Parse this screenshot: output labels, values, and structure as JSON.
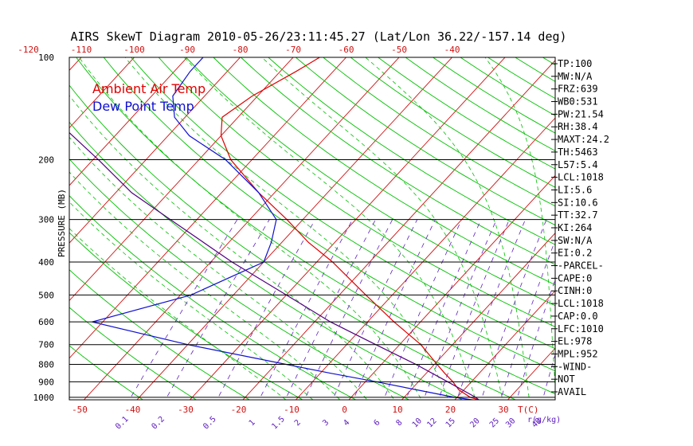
{
  "title": "AIRS SkewT Diagram 2010-05-26/23:11:45.27 (Lat/Lon 36.22/-157.14 deg)",
  "legend": {
    "ambient_label": "Ambient Air Temp",
    "dewpoint_label": "Dew Point Temp"
  },
  "colors": {
    "ambient": "#e00000",
    "dewpoint": "#1010d0",
    "parcel": "#500080",
    "dry_adiabat": "#00c000",
    "isotherm": "#d01010",
    "mixing_ratio": "#6020c0",
    "text": "#000000"
  },
  "stats": [
    "TP:100",
    "MW:N/A",
    "FRZ:639",
    "WB0:531",
    "PW:21.54",
    "RH:38.4",
    "MAXT:24.2",
    "TH:5463",
    "L57:5.4",
    "LCL:1018",
    "LI:5.6",
    "SI:10.6",
    "TT:32.7",
    "KI:264",
    "SW:N/A",
    "EI:0.2",
    "-PARCEL-",
    "CAPE:0",
    "CINH:0",
    "LCL:1018",
    "CAP:0.0",
    "LFC:1010",
    "EL:978",
    "MPL:952",
    "-WIND-",
    "NOT",
    "AVAIL"
  ],
  "chart_data": {
    "type": "line",
    "title": "AIRS SkewT Diagram 2010-05-26/23:11:45.27 (Lat/Lon 36.22/-157.14 deg)",
    "ylabel": "PRESSURE (MB)",
    "xlabel": "T(C)",
    "y_scale": "log",
    "pressure_ticks": [
      100,
      200,
      300,
      400,
      500,
      600,
      700,
      800,
      900,
      1000
    ],
    "pressure_tick_labels": [
      "100",
      "200",
      "300",
      "400",
      "500",
      "600",
      "700",
      "800",
      "900",
      "1000"
    ],
    "ylim": [
      1050,
      100
    ],
    "bottom_temperature_ticks": [
      -50,
      -40,
      -30,
      -20,
      -10,
      0,
      10,
      20,
      30
    ],
    "bottom_temperature_tick_labels": [
      "-50",
      "-40",
      "-30",
      "-20",
      "-10",
      "0",
      "10",
      "20",
      "30"
    ],
    "top_temperature_ticks": [
      -120,
      -110,
      -100,
      -90,
      -80,
      -70,
      -60,
      -50,
      -40
    ],
    "top_temperature_tick_labels": [
      "-120",
      "-110",
      "-100",
      "-90",
      "-80",
      "-70",
      "-60",
      "-50",
      "-40"
    ],
    "mixing_ratio_ticks": [
      0.1,
      0.2,
      0.5,
      1,
      1.5,
      2,
      3,
      4,
      6,
      8,
      10,
      12,
      15,
      20,
      25,
      30,
      40
    ],
    "mixing_ratio_tick_labels": [
      "0.1",
      "0.2",
      "0.5",
      "1",
      "1.5",
      "2",
      "3",
      "4",
      "6",
      "8",
      "10",
      "12",
      "15",
      "20",
      "25",
      "30",
      "40"
    ],
    "mixing_ratio_label": "r(g/kg)",
    "series": [
      {
        "name": "Ambient Air Temp",
        "pressure": [
          1025,
          1000,
          950,
          900,
          850,
          800,
          700,
          600,
          500,
          400,
          350,
          300,
          250,
          200,
          170,
          150,
          130,
          110,
          100
        ],
        "temperature": [
          25.5,
          22.5,
          19,
          16.5,
          13.5,
          10.5,
          4,
          -5,
          -15,
          -27,
          -35,
          -43,
          -53,
          -64,
          -70,
          -73,
          -71,
          -67,
          -65
        ]
      },
      {
        "name": "Dew Point Temp",
        "pressure": [
          1025,
          1000,
          950,
          900,
          850,
          800,
          700,
          600,
          500,
          400,
          350,
          300,
          250,
          200,
          170,
          150,
          130,
          110,
          100
        ],
        "temperature": [
          25,
          19.5,
          11,
          2,
          -8,
          -18,
          -40,
          -62,
          -48,
          -40,
          -42,
          -45,
          -53,
          -65,
          -76,
          -82,
          -86,
          -87,
          -87
        ]
      },
      {
        "name": "",
        "pressure": [
          1025,
          1000,
          900,
          800,
          700,
          600,
          500,
          400,
          300,
          250,
          200,
          150,
          100
        ],
        "temperature": [
          25,
          23.5,
          15.5,
          6.5,
          -4.5,
          -17,
          -30,
          -46,
          -65,
          -77,
          -89,
          -105,
          -128
        ]
      }
    ],
    "grid": true
  }
}
